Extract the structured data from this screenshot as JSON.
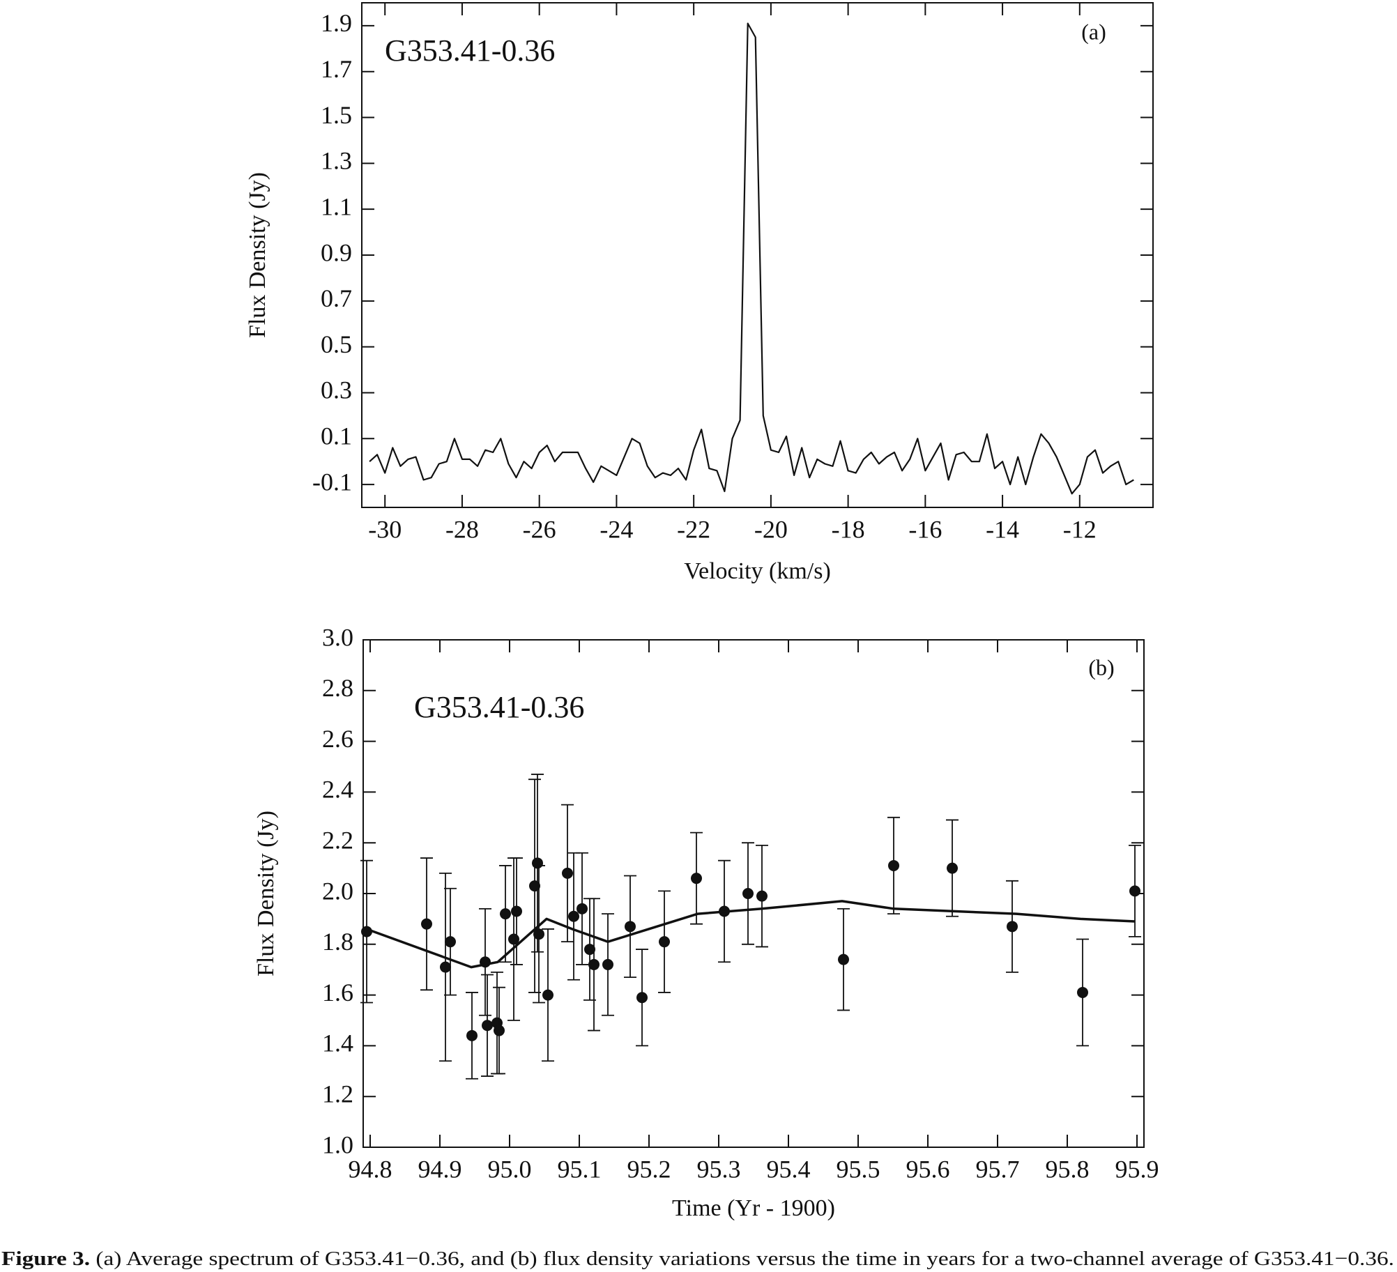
{
  "chart_data": [
    {
      "type": "line",
      "annotation": "G353.41-0.36",
      "panel": "(a)",
      "xlabel": "Velocity (km/s)",
      "ylabel": "Flux Density (Jy)",
      "xlim": [
        -30.6,
        -10.1
      ],
      "ylim": [
        -0.2,
        2.0
      ],
      "xticks": [
        -30,
        -28,
        -26,
        -24,
        -22,
        -20,
        -18,
        -16,
        -14,
        -12
      ],
      "yticks": [
        -0.1,
        0.1,
        0.3,
        0.5,
        0.7,
        0.9,
        1.1,
        1.3,
        1.5,
        1.7,
        1.9
      ],
      "color": "#111111",
      "x": [
        -30.4,
        -30.2,
        -30.0,
        -29.8,
        -29.6,
        -29.4,
        -29.2,
        -29.0,
        -28.8,
        -28.6,
        -28.4,
        -28.2,
        -28.0,
        -27.8,
        -27.6,
        -27.4,
        -27.2,
        -27.0,
        -26.8,
        -26.6,
        -26.4,
        -26.2,
        -26.0,
        -25.8,
        -25.6,
        -25.4,
        -25.2,
        -25.0,
        -24.8,
        -24.6,
        -24.4,
        -24.2,
        -24.0,
        -23.8,
        -23.6,
        -23.4,
        -23.2,
        -23.0,
        -22.8,
        -22.6,
        -22.4,
        -22.2,
        -22.0,
        -21.8,
        -21.6,
        -21.4,
        -21.2,
        -21.0,
        -20.8,
        -20.6,
        -20.4,
        -20.2,
        -20.0,
        -19.8,
        -19.6,
        -19.4,
        -19.2,
        -19.0,
        -18.8,
        -18.6,
        -18.4,
        -18.2,
        -18.0,
        -17.8,
        -17.6,
        -17.4,
        -17.2,
        -17.0,
        -16.8,
        -16.6,
        -16.4,
        -16.2,
        -16.0,
        -15.8,
        -15.6,
        -15.4,
        -15.2,
        -15.0,
        -14.8,
        -14.6,
        -14.4,
        -14.2,
        -14.0,
        -13.8,
        -13.6,
        -13.4,
        -13.2,
        -13.0,
        -12.8,
        -12.6,
        -12.4,
        -12.2,
        -12.0,
        -11.8,
        -11.6,
        -11.4,
        -11.2,
        -11.0,
        -10.8,
        -10.6
      ],
      "values": [
        0.0,
        0.03,
        -0.05,
        0.06,
        -0.02,
        0.01,
        0.02,
        -0.08,
        -0.07,
        -0.01,
        0.0,
        0.1,
        0.01,
        0.01,
        -0.02,
        0.05,
        0.04,
        0.1,
        -0.01,
        -0.07,
        0.0,
        -0.03,
        0.04,
        0.07,
        0.0,
        0.04,
        0.04,
        0.04,
        -0.03,
        -0.09,
        -0.02,
        -0.04,
        -0.06,
        0.02,
        0.1,
        0.08,
        -0.02,
        -0.07,
        -0.05,
        -0.06,
        -0.03,
        -0.08,
        0.05,
        0.14,
        -0.03,
        -0.04,
        -0.13,
        0.1,
        0.18,
        1.91,
        1.85,
        0.2,
        0.05,
        0.04,
        0.11,
        -0.06,
        0.06,
        -0.07,
        0.01,
        -0.01,
        -0.02,
        0.09,
        -0.04,
        -0.05,
        0.01,
        0.04,
        -0.01,
        0.02,
        0.04,
        -0.04,
        0.01,
        0.1,
        -0.04,
        0.02,
        0.08,
        -0.08,
        0.03,
        0.04,
        0.0,
        0.0,
        0.12,
        -0.03,
        0.0,
        -0.1,
        0.02,
        -0.1,
        0.02,
        0.12,
        0.08,
        0.02,
        -0.06,
        -0.14,
        -0.1,
        0.02,
        0.05,
        -0.05,
        -0.02,
        0.0,
        -0.1,
        -0.08
      ]
    },
    {
      "type": "scatter",
      "annotation": "G353.41-0.36",
      "panel": "(b)",
      "xlabel": "Time (Yr - 1900)",
      "ylabel": "Flux Density (Jy)",
      "xlim": [
        94.79,
        95.91
      ],
      "ylim": [
        1.0,
        3.0
      ],
      "xticks": [
        94.8,
        94.9,
        {
          "value": 95,
          "label": "95.0"
        },
        95.1,
        95.2,
        95.3,
        95.4,
        95.5,
        95.6,
        95.7,
        95.8,
        95.9
      ],
      "yticks": [
        {
          "value": 1,
          "label": "1.0"
        },
        1.2,
        1.4,
        1.6,
        1.8,
        {
          "value": 2,
          "label": "2.0"
        },
        2.2,
        2.4,
        2.6,
        2.8,
        {
          "value": 3,
          "label": "3.0"
        }
      ],
      "color": "#111111",
      "series": [
        {
          "x": [
            94.795,
            94.881,
            94.908,
            94.915,
            94.946,
            94.965,
            94.968,
            94.982,
            94.985,
            94.994,
            95.006,
            95.01,
            95.036,
            95.04,
            95.042,
            95.055,
            95.083,
            95.092,
            95.104,
            95.115,
            95.121,
            95.141,
            95.173,
            95.19,
            95.222,
            95.268,
            95.308,
            95.342,
            95.362,
            95.479,
            95.551,
            95.635,
            95.721,
            95.822,
            95.897
          ],
          "values": [
            1.85,
            1.88,
            1.71,
            1.81,
            1.44,
            1.73,
            1.48,
            1.49,
            1.46,
            1.92,
            1.82,
            1.93,
            2.03,
            2.12,
            1.84,
            1.6,
            2.08,
            1.91,
            1.94,
            1.78,
            1.72,
            1.72,
            1.87,
            1.59,
            1.81,
            2.06,
            1.93,
            2.0,
            1.99,
            1.74,
            2.11,
            2.1,
            1.87,
            1.61,
            2.01
          ],
          "errors": [
            0.28,
            0.26,
            0.37,
            0.21,
            0.17,
            0.21,
            0.2,
            0.2,
            0.17,
            0.19,
            0.32,
            0.21,
            0.42,
            0.35,
            0.27,
            0.26,
            0.27,
            0.25,
            0.22,
            0.2,
            0.26,
            0.2,
            0.2,
            0.19,
            0.2,
            0.18,
            0.2,
            0.2,
            0.2,
            0.2,
            0.19,
            0.19,
            0.18,
            0.21,
            0.18
          ]
        },
        {
          "x": [
            94.795,
            94.945,
            94.983,
            95.053,
            95.09,
            95.141,
            95.188,
            95.27,
            95.362,
            95.477,
            95.551,
            95.727,
            95.819,
            95.897
          ],
          "values": [
            1.86,
            1.71,
            1.73,
            1.9,
            1.86,
            1.81,
            1.85,
            1.92,
            1.94,
            1.97,
            1.94,
            1.92,
            1.9,
            1.89
          ]
        }
      ]
    }
  ],
  "caption": {
    "label": "Figure 3.",
    "text": " (a) Average spectrum of G353.41−0.36, and (b) flux density variations versus the time in years for a two-channel average of G353.41−0.36."
  }
}
